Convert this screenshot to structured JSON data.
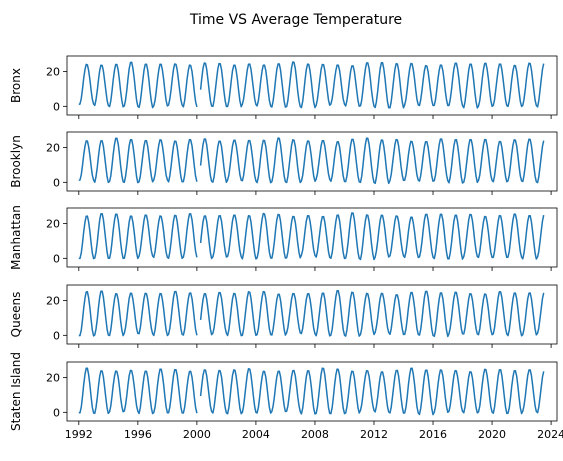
{
  "chart_data": {
    "type": "line",
    "title": "Time VS Average Temperature",
    "xlim": [
      1991.2,
      2024.4
    ],
    "ylim": [
      -5,
      29
    ],
    "x_ticks": [
      "1992",
      "1996",
      "2000",
      "2004",
      "2008",
      "2012",
      "2016",
      "2020",
      "2024"
    ],
    "y_ticks": [
      "0",
      "20"
    ],
    "line_color": "#1f77b4",
    "x_start": 1992.0,
    "x_end": 2023.55,
    "gap": [
      2000.0,
      2000.2
    ],
    "panels": [
      {
        "ylabel": "Bronx",
        "amplitude": 12.5,
        "mean": 12.2
      },
      {
        "ylabel": "Brooklyn",
        "amplitude": 12.3,
        "mean": 12.4
      },
      {
        "ylabel": "Manhattan",
        "amplitude": 12.6,
        "mean": 12.6
      },
      {
        "ylabel": "Queens",
        "amplitude": 12.4,
        "mean": 12.4
      },
      {
        "ylabel": "Staten Island",
        "amplitude": 12.6,
        "mean": 12.0
      }
    ]
  }
}
